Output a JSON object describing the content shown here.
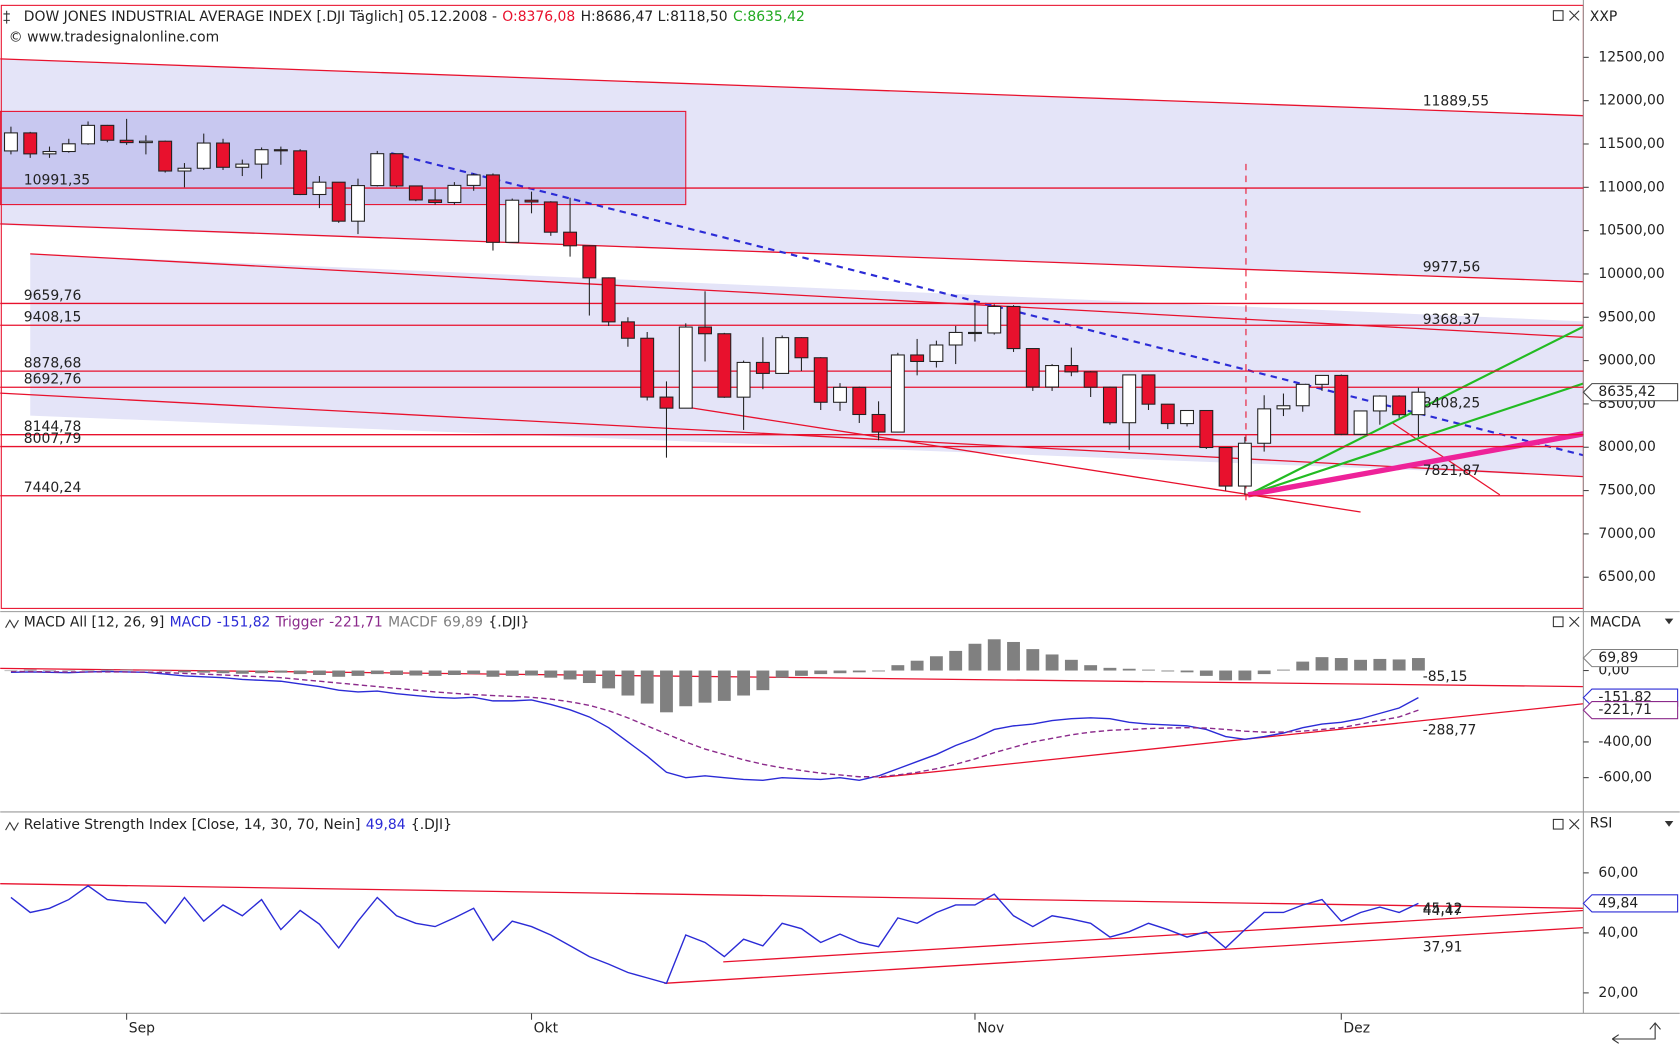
{
  "chart_data": [
    {
      "type": "candlestick",
      "title": "DOW JONES INDUSTRIAL AVERAGE INDEX [.DJI  Täglich] 05.12.2008 -",
      "ohlc_labels": [
        "O:8376,08",
        "H:8686,47 L:8118,50",
        "C:8635,42"
      ],
      "ohlc_label_colors": [
        "#e8112d",
        "#222222",
        "#22aa22"
      ],
      "subtitle": "© www.tradesignalonline.com",
      "axis_name": "XXP",
      "categories": [
        null,
        null,
        null,
        null,
        null,
        null,
        "Sep",
        null,
        null,
        null,
        null,
        null,
        null,
        null,
        null,
        null,
        null,
        null,
        null,
        null,
        null,
        null,
        null,
        null,
        null,
        null,
        null,
        "Okt",
        null,
        null,
        null,
        null,
        null,
        null,
        null,
        null,
        null,
        null,
        null,
        null,
        null,
        null,
        null,
        null,
        null,
        null,
        null,
        null,
        null,
        null,
        "Nov",
        null,
        null,
        null,
        null,
        null,
        null,
        null,
        null,
        null,
        null,
        null,
        null,
        null,
        null,
        null,
        null,
        null,
        null,
        "Dez",
        null,
        null,
        null,
        null
      ],
      "open": [
        11420,
        11628,
        11386,
        11413,
        11502,
        11715,
        11543,
        11516,
        11532,
        11188,
        11220,
        11511,
        11231,
        11268,
        11434,
        11421,
        10917,
        11059,
        10609,
        11020,
        11388,
        11016,
        10854,
        10825,
        11022,
        11143,
        10365,
        10851,
        10831,
        10482,
        10325,
        9955,
        9447,
        9258,
        8579,
        8451,
        9387,
        9310,
        8578,
        8979,
        8852,
        9265,
        9033,
        8519,
        8691,
        8378,
        8175,
        9065,
        8990,
        9180,
        9325,
        9319,
        9625,
        9139,
        8695,
        8943,
        8870,
        8693,
        8283,
        8835,
        8497,
        8273,
        8424,
        7997,
        7552,
        8046,
        8443,
        8479,
        8726,
        8829,
        8149,
        8419,
        8591,
        8376.08
      ],
      "high": [
        11700,
        11640,
        11470,
        11560,
        11760,
        11720,
        11790,
        11600,
        11540,
        11280,
        11620,
        11560,
        11320,
        11460,
        11470,
        11440,
        11130,
        11060,
        11100,
        11420,
        11390,
        11020,
        10980,
        11060,
        11160,
        11160,
        10870,
        10950,
        10840,
        10880,
        10330,
        9960,
        9500,
        9330,
        8760,
        9430,
        9800,
        9320,
        9000,
        9270,
        9290,
        9270,
        9040,
        8740,
        8700,
        8530,
        9090,
        9250,
        9230,
        9400,
        9660,
        9650,
        9640,
        9140,
        8960,
        9150,
        8880,
        8700,
        8840,
        8840,
        8500,
        8430,
        8430,
        8000,
        8120,
        8600,
        8620,
        8730,
        8830,
        8840,
        8420,
        8600,
        8600,
        8686.47
      ],
      "low": [
        11380,
        11340,
        11340,
        11400,
        11490,
        11520,
        11490,
        11380,
        11170,
        11000,
        11200,
        11200,
        11130,
        11100,
        11260,
        10910,
        10760,
        10590,
        10460,
        11010,
        11000,
        10840,
        10800,
        10800,
        10960,
        10270,
        10360,
        10700,
        10440,
        10200,
        9520,
        9400,
        9160,
        8540,
        7880,
        8450,
        8990,
        8570,
        8200,
        8670,
        8850,
        8880,
        8430,
        8420,
        8280,
        8080,
        8170,
        8830,
        8920,
        8960,
        9220,
        9300,
        9100,
        8650,
        8650,
        8820,
        8580,
        8260,
        7970,
        8430,
        8210,
        8240,
        7980,
        7500,
        7450,
        7950,
        8360,
        8410,
        8650,
        8140,
        8140,
        8260,
        8340,
        8118.5
      ],
      "close": [
        11628,
        11386,
        11413,
        11502,
        11715,
        11543,
        11516,
        11532,
        11188,
        11220,
        11511,
        11231,
        11268,
        11434,
        11421,
        10917,
        11059,
        10609,
        11020,
        11388,
        11016,
        10854,
        10825,
        11022,
        11143,
        10365,
        10851,
        10831,
        10482,
        10325,
        9955,
        9447,
        9258,
        8579,
        8451,
        9387,
        9310,
        8578,
        8979,
        8852,
        9265,
        9033,
        8519,
        8691,
        8378,
        8175,
        9065,
        8990,
        9180,
        9325,
        9319,
        9625,
        9139,
        8695,
        8943,
        8870,
        8693,
        8283,
        8835,
        8497,
        8273,
        8424,
        7997,
        7552,
        8046,
        8443,
        8479,
        8726,
        8829,
        8149,
        8419,
        8591,
        8376,
        8635.42
      ],
      "up_color": "#ffffff",
      "down_color": "#e8112d",
      "last_label": "8635,42",
      "ylim": [
        6140,
        13100
      ],
      "yticks": [
        {
          "value": 12500,
          "label": "12500,00"
        },
        {
          "value": 12000,
          "label": "12000,00"
        },
        {
          "value": 11500,
          "label": "11500,00"
        },
        {
          "value": 11000,
          "label": "11000,00"
        },
        {
          "value": 10500,
          "label": "10500,00"
        },
        {
          "value": 10000,
          "label": "10000,00"
        },
        {
          "value": 9500,
          "label": "9500,00"
        },
        {
          "value": 9000,
          "label": "9000,00"
        },
        {
          "value": 8500,
          "label": "8500,00"
        },
        {
          "value": 8000,
          "label": "8000,00"
        },
        {
          "value": 7500,
          "label": "7500,00"
        },
        {
          "value": 7000,
          "label": "7000,00"
        },
        {
          "value": 6500,
          "label": "6500,00"
        }
      ],
      "levels": [
        {
          "value": 10991.35,
          "label": "10991,35"
        },
        {
          "value": 9659.76,
          "label": "9659,76"
        },
        {
          "value": 9408.15,
          "label": "9408,15"
        },
        {
          "value": 8878.68,
          "label": "8878,68"
        },
        {
          "value": 8692.76,
          "label": "8692,76"
        },
        {
          "value": 8144.78,
          "label": "8144,78"
        },
        {
          "value": 8007.79,
          "label": "8007,79"
        },
        {
          "value": 7440.24,
          "label": "7440,24"
        }
      ],
      "annotations": [
        {
          "value": 11889.55,
          "label": "11889,55",
          "color": "#e8112d"
        },
        {
          "value": 9977.56,
          "label": "9977,56",
          "color": "#e8112d"
        },
        {
          "value": 9368.37,
          "label": "9368,37",
          "color": "#e8112d"
        },
        {
          "value": 8408.25,
          "label": "8408,25",
          "color": "#2b2bd6"
        },
        {
          "value": 7821.87,
          "label": "7821,87",
          "color": "#e8112d"
        }
      ]
    },
    {
      "type": "macd",
      "title": "MACD All [12, 26, 9]",
      "symbol": "{.DJI}",
      "axis_name": "MACDA",
      "series": [
        {
          "name": "MACD",
          "color": "#2b2bd6",
          "style": "line",
          "last_label": "-151,82",
          "values": [
            -10,
            -8,
            -10,
            -12,
            -8,
            -5,
            -8,
            -10,
            -20,
            -30,
            -35,
            -40,
            -50,
            -55,
            -60,
            -75,
            -90,
            -110,
            -120,
            -115,
            -130,
            -140,
            -150,
            -155,
            -150,
            -170,
            -170,
            -165,
            -190,
            -220,
            -260,
            -320,
            -400,
            -480,
            -570,
            -600,
            -590,
            -600,
            -610,
            -615,
            -600,
            -605,
            -610,
            -600,
            -615,
            -590,
            -550,
            -510,
            -470,
            -420,
            -380,
            -330,
            -310,
            -300,
            -280,
            -270,
            -265,
            -270,
            -290,
            -300,
            -305,
            -310,
            -330,
            -370,
            -385,
            -370,
            -350,
            -320,
            -300,
            -290,
            -270,
            -240,
            -210,
            -151.82
          ]
        },
        {
          "name": "Trigger",
          "color": "#8b2a8b",
          "style": "dash",
          "last_label": "-221,71",
          "values": [
            -5,
            -6,
            -7,
            -8,
            -8,
            -8,
            -8,
            -9,
            -12,
            -16,
            -20,
            -25,
            -30,
            -35,
            -40,
            -50,
            -60,
            -70,
            -80,
            -90,
            -100,
            -110,
            -120,
            -128,
            -135,
            -140,
            -145,
            -150,
            -160,
            -175,
            -195,
            -225,
            -265,
            -310,
            -355,
            -400,
            -440,
            -470,
            -500,
            -525,
            -545,
            -560,
            -575,
            -585,
            -595,
            -595,
            -585,
            -570,
            -550,
            -525,
            -495,
            -460,
            -430,
            -400,
            -380,
            -360,
            -345,
            -335,
            -330,
            -325,
            -322,
            -320,
            -322,
            -330,
            -340,
            -345,
            -345,
            -340,
            -330,
            -320,
            -300,
            -280,
            -260,
            -221.71
          ]
        },
        {
          "name": "MACDF",
          "color": "#808080",
          "style": "bar",
          "last_label": "69,89",
          "values": [
            0,
            5,
            3,
            0,
            2,
            5,
            5,
            3,
            -5,
            -10,
            -12,
            -15,
            -18,
            -15,
            -12,
            -20,
            -25,
            -35,
            -30,
            -20,
            -25,
            -28,
            -30,
            -25,
            -20,
            -35,
            -30,
            -28,
            -40,
            -50,
            -70,
            -100,
            -140,
            -185,
            -234,
            -200,
            -180,
            -170,
            -140,
            -110,
            -40,
            -30,
            -20,
            -15,
            -10,
            -5,
            30,
            55,
            80,
            110,
            150,
            175,
            160,
            120,
            90,
            60,
            30,
            15,
            10,
            5,
            -5,
            -10,
            -30,
            -55,
            -55,
            -20,
            5,
            50,
            75,
            70,
            60,
            65,
            62,
            69.89
          ]
        }
      ],
      "ylim": [
        -786,
        324
      ],
      "yticks": [
        {
          "value": 0,
          "label": "0,00"
        },
        {
          "value": -400,
          "label": "-400,00"
        },
        {
          "value": -600,
          "label": "-600,00"
        }
      ],
      "annotations": [
        {
          "value": -85.15,
          "label": "-85,15",
          "color": "#e8112d"
        },
        {
          "value": -288.77,
          "label": "-288,77",
          "color": "#e8112d"
        }
      ]
    },
    {
      "type": "line",
      "title": "Relative Strength Index [Close, 14, 30, 70, Nein]",
      "symbol": "{.DJI}",
      "axis_name": "RSI",
      "series": [
        {
          "color": "#2b2bd6",
          "style": "line",
          "last_label": "49,84",
          "values": [
            51.8,
            46.8,
            48.2,
            51.1,
            55.7,
            51.1,
            50.4,
            50,
            43.2,
            51.8,
            43.9,
            49.3,
            45.7,
            51.1,
            41.1,
            47.5,
            42.9,
            35,
            43.9,
            51.8,
            45.7,
            43.2,
            42.1,
            45,
            48.2,
            37.5,
            43.9,
            42.1,
            39.3,
            35.7,
            32.1,
            29.6,
            26.8,
            25,
            23.2,
            39.3,
            36.8,
            32.1,
            37.9,
            35.7,
            43.2,
            41.4,
            36.8,
            39.6,
            36.8,
            35.4,
            45,
            43.2,
            46.8,
            49.3,
            49.3,
            52.9,
            45.7,
            42.1,
            45.7,
            44.6,
            43.2,
            38.6,
            40.4,
            43.2,
            41.1,
            38.6,
            40.4,
            35,
            41.1,
            46.8,
            46.8,
            49.3,
            51.1,
            43.9,
            46.8,
            48.6,
            46.8,
            49.84
          ]
        }
      ],
      "ylim": [
        13.2,
        79.6
      ],
      "yticks": [
        {
          "value": 60,
          "label": "60,00"
        },
        {
          "value": 40,
          "label": "40,00"
        },
        {
          "value": 20,
          "label": "20,00"
        }
      ],
      "annotations": [
        {
          "value": 45.12,
          "label": "45,12",
          "color": "#e8112d"
        },
        {
          "value": 44.47,
          "label": "44,47",
          "color": "#e8112d"
        },
        {
          "value": 37.91,
          "label": "37,91",
          "color": "#e8112d"
        }
      ]
    }
  ]
}
